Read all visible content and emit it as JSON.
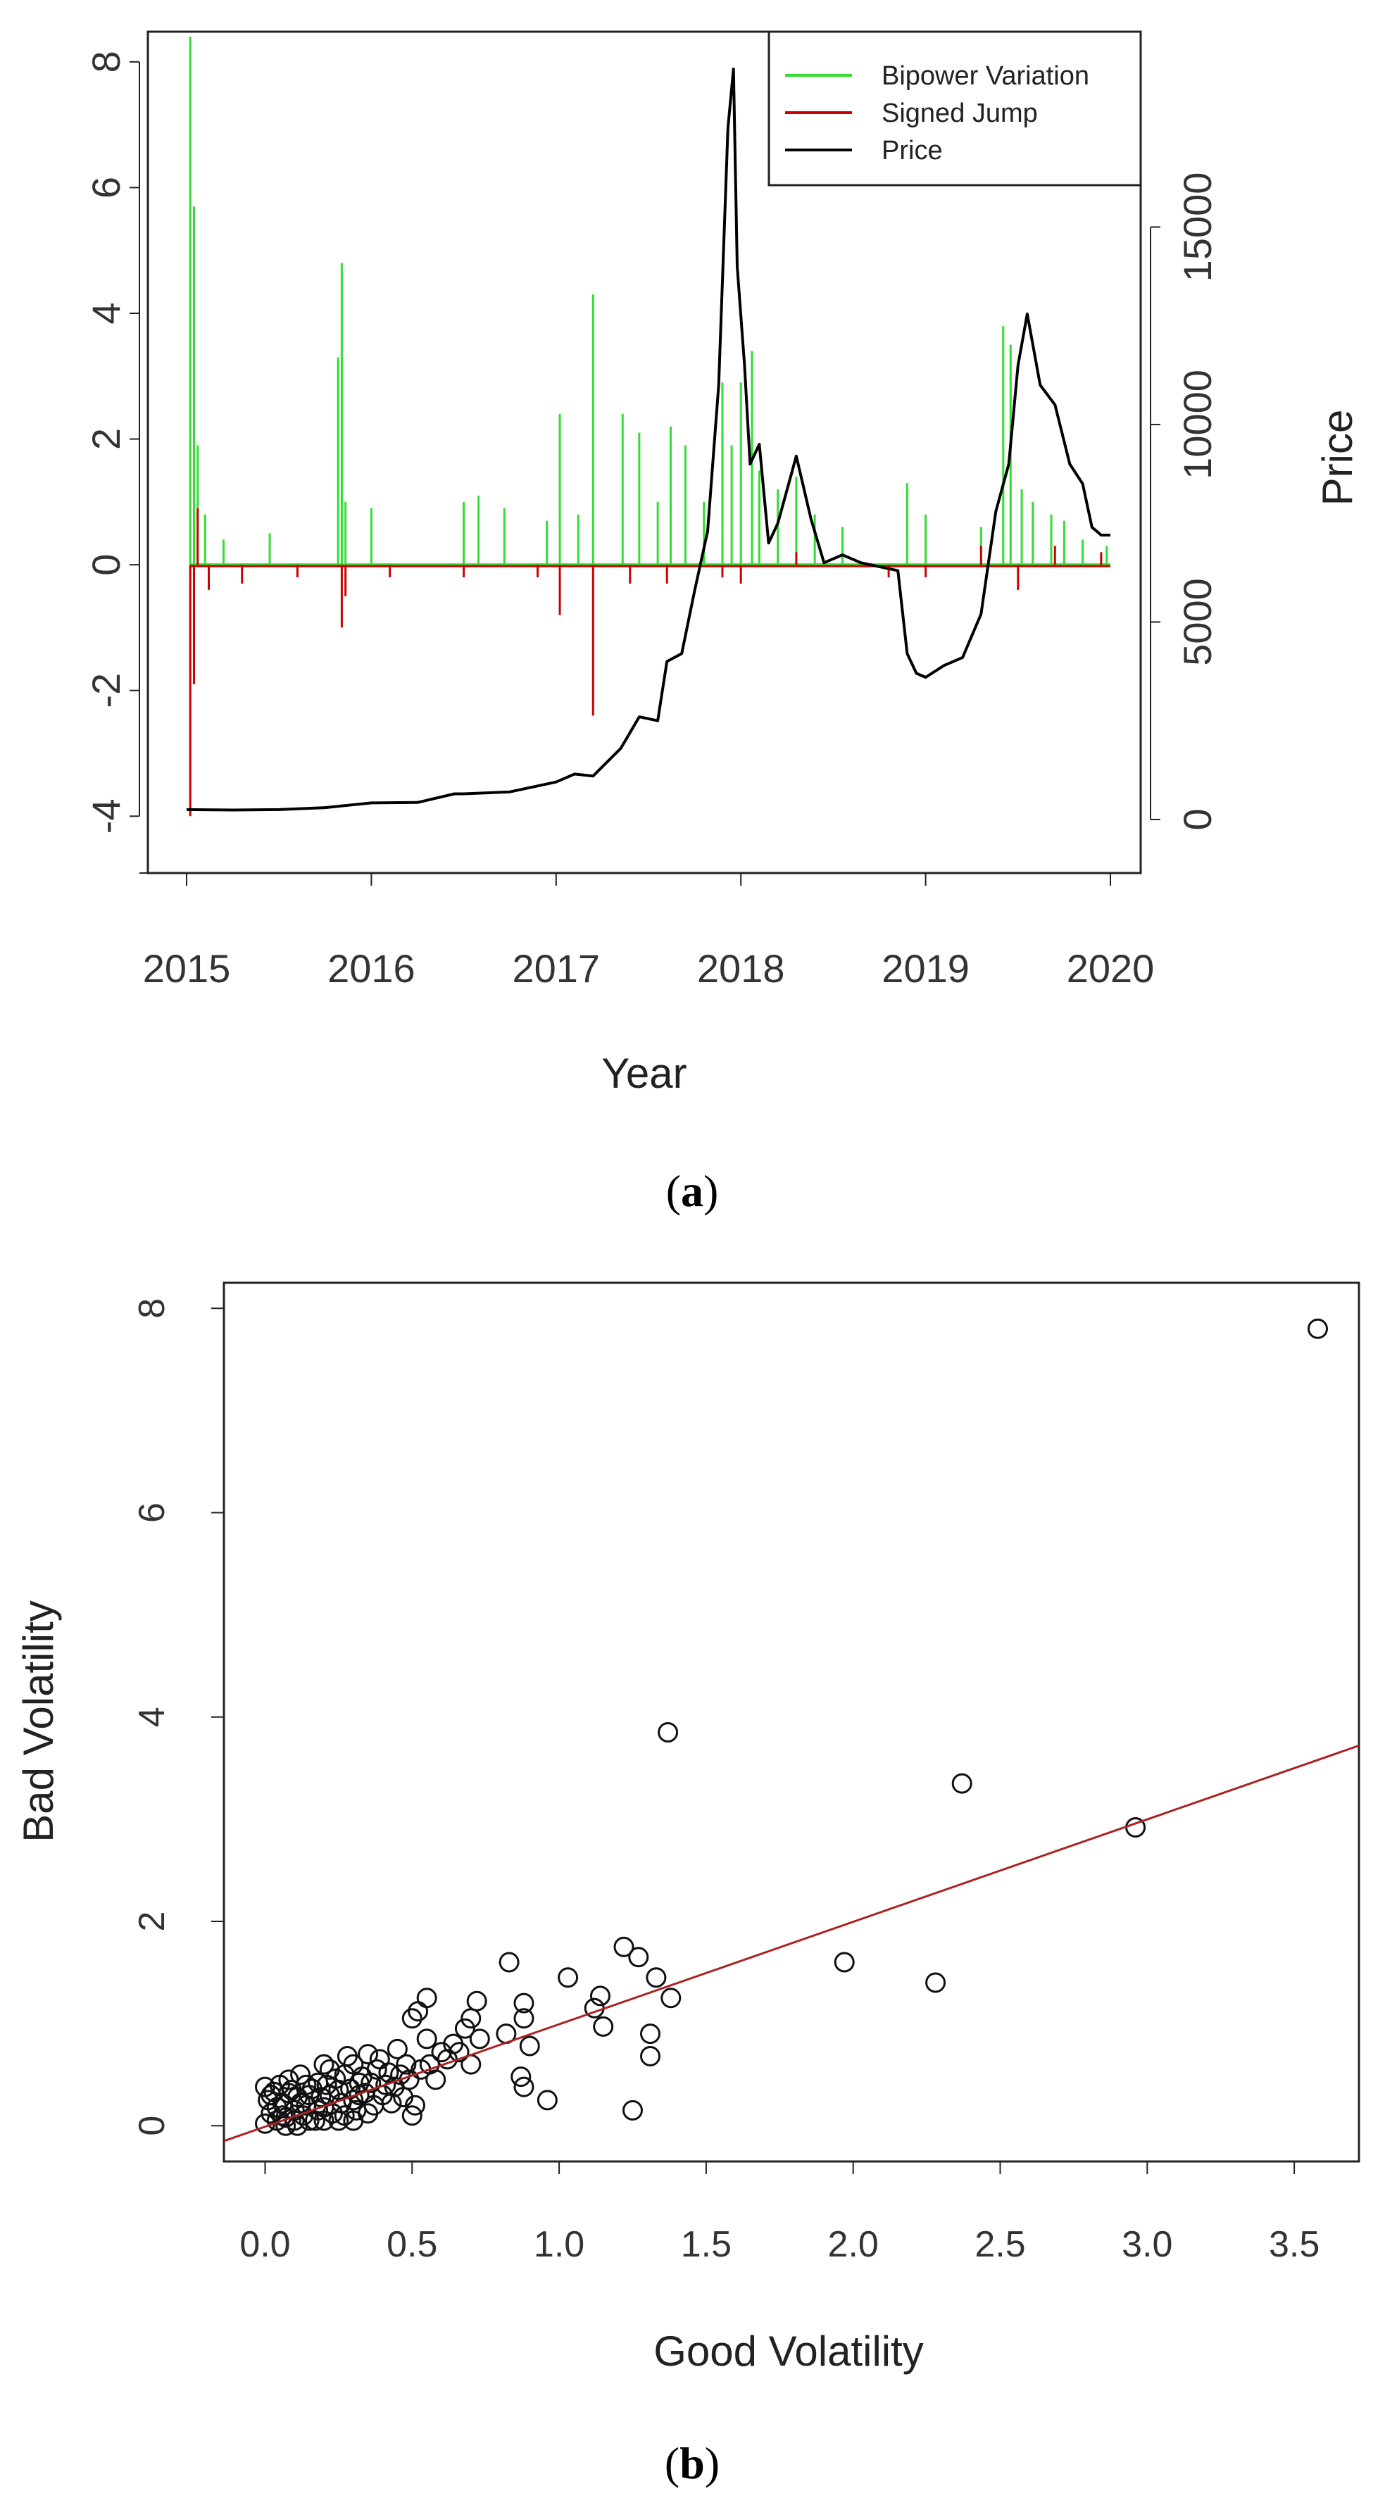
{
  "chart_data": [
    {
      "type": "line",
      "panel": "(a)",
      "caption_open": "(",
      "caption_letter": "a",
      "caption_close": ")",
      "xlabel": "Year",
      "ylabel": "",
      "ylabel_right": "Price",
      "x_ticks": [
        "2015",
        "2016",
        "2017",
        "2018",
        "2019",
        "2020"
      ],
      "y_ticks": [
        "8",
        "6",
        "4",
        "2",
        "0",
        "-2",
        "-4"
      ],
      "y_right_ticks": [
        "15000",
        "10000",
        "5000",
        "0"
      ],
      "xlim": [
        2015,
        2020
      ],
      "ylim": [
        -4.4,
        8.2
      ],
      "y_right_lim": [
        -500,
        19500
      ],
      "legend": [
        {
          "label": "Bipower Variation",
          "color": "#33dd33"
        },
        {
          "label": "Signed Jump",
          "color": "#cc0000"
        },
        {
          "label": "Price",
          "color": "#000000"
        }
      ],
      "series": [
        {
          "name": "Bipower Variation",
          "kind": "spikes",
          "x": [
            2015.02,
            2015.04,
            2015.06,
            2015.1,
            2015.2,
            2015.45,
            2015.82,
            2015.84,
            2015.86,
            2016.0,
            2016.5,
            2016.58,
            2016.72,
            2016.95,
            2017.02,
            2017.12,
            2017.2,
            2017.36,
            2017.45,
            2017.55,
            2017.62,
            2017.7,
            2017.8,
            2017.9,
            2017.95,
            2018.0,
            2018.06,
            2018.1,
            2018.2,
            2018.3,
            2018.4,
            2018.55,
            2018.9,
            2019.0,
            2019.3,
            2019.42,
            2019.46,
            2019.52,
            2019.58,
            2019.68,
            2019.75,
            2019.85,
            2019.98
          ],
          "values": [
            8.4,
            5.7,
            1.9,
            0.8,
            0.4,
            0.5,
            3.3,
            4.8,
            1.0,
            0.9,
            1.0,
            1.1,
            0.9,
            0.7,
            2.4,
            0.8,
            4.3,
            2.4,
            2.1,
            1.0,
            2.2,
            1.9,
            1.0,
            2.9,
            1.9,
            2.9,
            3.4,
            1.5,
            1.2,
            1.4,
            0.8,
            0.6,
            1.3,
            0.8,
            0.6,
            3.8,
            3.5,
            1.2,
            1.0,
            0.8,
            0.7,
            0.4,
            0.3
          ],
          "color": "#33dd33"
        },
        {
          "name": "Signed Jump",
          "kind": "spikes",
          "x": [
            2015.02,
            2015.04,
            2015.06,
            2015.12,
            2015.3,
            2015.6,
            2015.84,
            2015.86,
            2016.1,
            2016.5,
            2016.9,
            2017.02,
            2017.2,
            2017.4,
            2017.6,
            2017.9,
            2018.0,
            2018.3,
            2018.8,
            2019.0,
            2019.3,
            2019.5,
            2019.7,
            2019.95
          ],
          "values": [
            -4.0,
            -1.9,
            0.9,
            -0.4,
            -0.3,
            -0.2,
            -1.0,
            -0.5,
            -0.2,
            -0.2,
            -0.2,
            -0.8,
            -2.4,
            -0.3,
            -0.3,
            -0.2,
            -0.3,
            0.2,
            -0.2,
            -0.2,
            0.3,
            -0.4,
            0.3,
            0.2
          ],
          "color": "#cc0000"
        },
        {
          "name": "Price",
          "kind": "line",
          "axis": "right",
          "x": [
            2015.0,
            2015.25,
            2015.5,
            2015.75,
            2016.0,
            2016.25,
            2016.45,
            2016.5,
            2016.75,
            2017.0,
            2017.1,
            2017.2,
            2017.35,
            2017.45,
            2017.55,
            2017.6,
            2017.68,
            2017.75,
            2017.82,
            2017.88,
            2017.93,
            2017.96,
            2017.98,
            2018.02,
            2018.05,
            2018.1,
            2018.15,
            2018.2,
            2018.3,
            2018.38,
            2018.45,
            2018.55,
            2018.65,
            2018.75,
            2018.85,
            2018.9,
            2018.95,
            2019.0,
            2019.1,
            2019.2,
            2019.3,
            2019.38,
            2019.45,
            2019.5,
            2019.55,
            2019.62,
            2019.7,
            2019.78,
            2019.85,
            2019.9,
            2019.95,
            2020.0
          ],
          "values": [
            250,
            240,
            250,
            300,
            420,
            430,
            650,
            650,
            700,
            950,
            1150,
            1100,
            1800,
            2600,
            2500,
            4000,
            4200,
            5800,
            7300,
            11000,
            17500,
            19000,
            14000,
            11500,
            9000,
            9500,
            7000,
            7500,
            9200,
            7600,
            6500,
            6700,
            6500,
            6400,
            6300,
            4200,
            3700,
            3600,
            3900,
            4100,
            5200,
            7800,
            9000,
            11500,
            12800,
            11000,
            10500,
            9000,
            8500,
            7400,
            7200,
            7200
          ],
          "color": "#000000"
        }
      ]
    },
    {
      "type": "scatter",
      "panel": "(b)",
      "caption_open": "(",
      "caption_letter": "b",
      "caption_close": ")",
      "xlabel": "Good Volatility",
      "ylabel": "Bad Volatility",
      "x_ticks": [
        "0.0",
        "0.5",
        "1.0",
        "1.5",
        "2.0",
        "2.5",
        "3.0",
        "3.5"
      ],
      "y_ticks": [
        "0",
        "2",
        "4",
        "6",
        "8"
      ],
      "xlim": [
        -0.14,
        3.72
      ],
      "ylim": [
        -0.35,
        8.25
      ],
      "fit_line": {
        "x": [
          -0.14,
          3.72
        ],
        "y": [
          -0.15,
          3.72
        ],
        "color": "#aa2222"
      },
      "points": [
        [
          3.58,
          7.8
        ],
        [
          1.37,
          3.85
        ],
        [
          2.37,
          3.35
        ],
        [
          2.96,
          2.92
        ],
        [
          1.97,
          1.6
        ],
        [
          2.28,
          1.4
        ],
        [
          1.22,
          1.75
        ],
        [
          1.27,
          1.65
        ],
        [
          1.33,
          1.45
        ],
        [
          1.38,
          1.25
        ],
        [
          1.03,
          1.45
        ],
        [
          1.14,
          1.27
        ],
        [
          1.12,
          1.15
        ],
        [
          1.15,
          0.97
        ],
        [
          1.31,
          0.9
        ],
        [
          1.31,
          0.68
        ],
        [
          1.25,
          0.15
        ],
        [
          0.83,
          1.6
        ],
        [
          0.88,
          1.2
        ],
        [
          0.88,
          1.05
        ],
        [
          0.9,
          0.78
        ],
        [
          0.87,
          0.48
        ],
        [
          0.88,
          0.38
        ],
        [
          0.96,
          0.25
        ],
        [
          0.82,
          0.9
        ],
        [
          0.72,
          1.22
        ],
        [
          0.7,
          1.05
        ],
        [
          0.68,
          0.95
        ],
        [
          0.73,
          0.85
        ],
        [
          0.7,
          0.6
        ],
        [
          0.55,
          1.25
        ],
        [
          0.52,
          1.12
        ],
        [
          0.5,
          1.05
        ],
        [
          0.6,
          0.72
        ],
        [
          0.55,
          0.85
        ],
        [
          0.58,
          0.45
        ],
        [
          0.5,
          0.1
        ],
        [
          0.51,
          0.2
        ],
        [
          0.48,
          0.6
        ],
        [
          0.45,
          0.75
        ],
        [
          0.42,
          0.52
        ],
        [
          0.4,
          0.3
        ],
        [
          0.38,
          0.55
        ],
        [
          0.35,
          0.7
        ],
        [
          0.32,
          0.42
        ],
        [
          0.3,
          0.25
        ],
        [
          0.3,
          0.6
        ],
        [
          0.28,
          0.68
        ],
        [
          0.25,
          0.35
        ],
        [
          0.22,
          0.55
        ],
        [
          0.2,
          0.18
        ],
        [
          0.18,
          0.42
        ],
        [
          0.15,
          0.3
        ],
        [
          0.12,
          0.5
        ],
        [
          0.1,
          0.15
        ],
        [
          0.08,
          0.32
        ],
        [
          0.06,
          0.22
        ],
        [
          0.05,
          0.4
        ],
        [
          0.04,
          0.05
        ],
        [
          0.02,
          0.12
        ],
        [
          0.0,
          0.02
        ],
        [
          0.01,
          0.25
        ],
        [
          0.03,
          0.33
        ],
        [
          0.07,
          0.08
        ],
        [
          0.09,
          0.35
        ],
        [
          0.11,
          0.28
        ],
        [
          0.13,
          0.1
        ],
        [
          0.14,
          0.2
        ],
        [
          0.16,
          0.36
        ],
        [
          0.17,
          0.05
        ],
        [
          0.19,
          0.28
        ],
        [
          0.21,
          0.4
        ],
        [
          0.23,
          0.12
        ],
        [
          0.24,
          0.46
        ],
        [
          0.26,
          0.22
        ],
        [
          0.27,
          0.5
        ],
        [
          0.29,
          0.36
        ],
        [
          0.31,
          0.15
        ],
        [
          0.33,
          0.48
        ],
        [
          0.34,
          0.32
        ],
        [
          0.36,
          0.42
        ],
        [
          0.37,
          0.2
        ],
        [
          0.39,
          0.65
        ],
        [
          0.41,
          0.4
        ],
        [
          0.44,
          0.38
        ],
        [
          0.46,
          0.5
        ],
        [
          0.47,
          0.28
        ],
        [
          0.49,
          0.45
        ],
        [
          0.53,
          0.55
        ],
        [
          0.56,
          0.6
        ],
        [
          0.62,
          0.65
        ],
        [
          0.64,
          0.8
        ],
        [
          0.66,
          0.72
        ],
        [
          0.2,
          0.6
        ],
        [
          0.15,
          0.05
        ],
        [
          0.06,
          0.1
        ],
        [
          0.02,
          0.3
        ],
        [
          0.12,
          0.22
        ],
        [
          0.18,
          0.15
        ],
        [
          0.22,
          0.3
        ],
        [
          0.27,
          0.1
        ],
        [
          0.32,
          0.3
        ],
        [
          0.0,
          0.38
        ],
        [
          0.04,
          0.18
        ],
        [
          0.08,
          0.45
        ],
        [
          0.1,
          0.05
        ],
        [
          0.14,
          0.4
        ],
        [
          0.25,
          0.05
        ],
        [
          0.35,
          0.12
        ],
        [
          0.43,
          0.22
        ],
        [
          0.3,
          0.05
        ],
        [
          0.2,
          0.05
        ],
        [
          0.07,
          0.0
        ],
        [
          0.11,
          0.0
        ]
      ]
    }
  ]
}
